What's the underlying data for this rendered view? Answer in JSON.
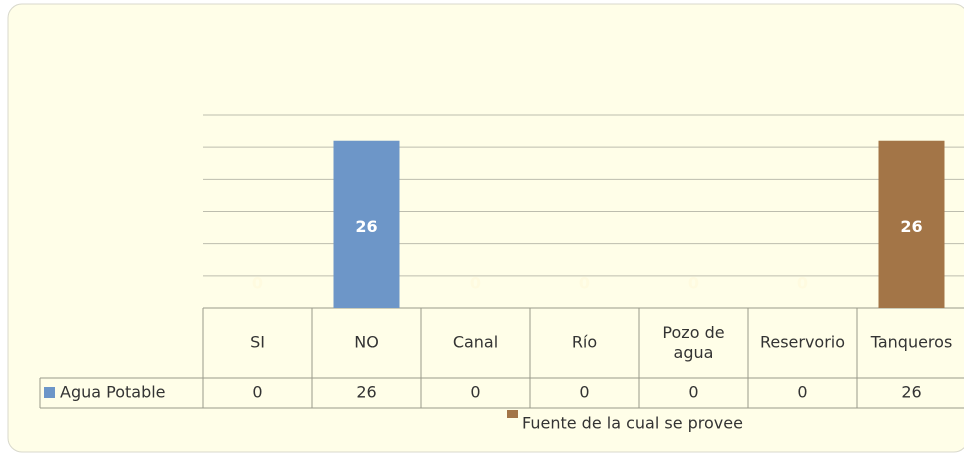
{
  "chart_data": {
    "type": "bar",
    "categories": [
      "SI",
      "NO",
      "Canal",
      "Río",
      [
        "Pozo de",
        "agua"
      ],
      "Reservorio",
      "Tanqueros"
    ],
    "series": [
      {
        "name": "Agua Potable",
        "color": "#6d96c8",
        "point_colors": [
          "#6d96c8",
          "#6d96c8",
          "#6d96c8",
          "#6d96c8",
          "#6d96c8",
          "#6d96c8",
          "#a37547"
        ],
        "values": [
          0,
          26,
          0,
          0,
          0,
          0,
          26
        ]
      }
    ],
    "extra_legend": {
      "name": "Fuente de la cual se provee",
      "color": "#a37547"
    },
    "ylim": [
      0,
      30
    ],
    "yticks": [
      0,
      5,
      10,
      15,
      20,
      25,
      30
    ],
    "grid": true,
    "data_table": true
  }
}
